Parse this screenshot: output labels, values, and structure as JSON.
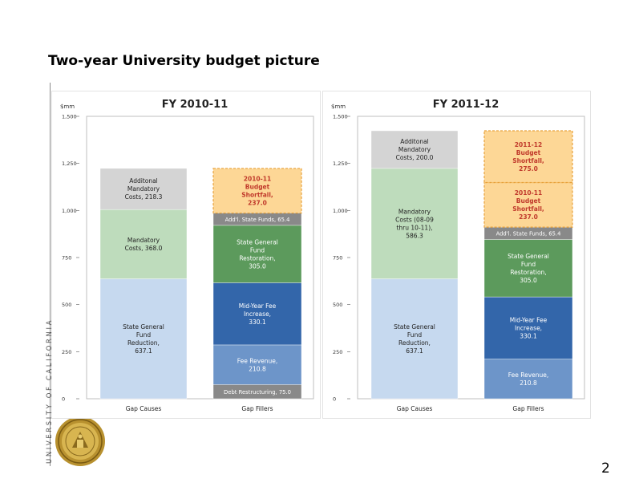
{
  "slide": {
    "title": "Two-year University budget picture",
    "page_number": "2",
    "sidebar_text": "UNIVERSITY OF CALIFORNIA"
  },
  "colors": {
    "causes_light_blue": "#c6d9ef",
    "mandatory_green": "#bedcbc",
    "additional_gray": "#d4d4d4",
    "shortfall_orange": "#fdd796",
    "shortfall_border": "#e8a23c",
    "restoration_green": "#5c9a5c",
    "midyear_blue": "#3366aa",
    "fee_blue": "#6d95c9",
    "dark_gray": "#898989"
  },
  "chart_data": [
    {
      "type": "bar",
      "stacked": true,
      "title": "FY 2010-11",
      "ylabel": "$mm",
      "ylim": [
        0,
        1500
      ],
      "yticks": [
        "0",
        "250",
        "500",
        "750",
        "1,000",
        "1,250",
        "1,500"
      ],
      "categories": [
        "Gap Causes",
        "Gap Fillers"
      ],
      "series": [
        {
          "name": "State General Fund Reduction",
          "category": "Gap Causes",
          "value": 637.1,
          "label": [
            "State General",
            "Fund",
            "Reduction,",
            "637.1"
          ]
        },
        {
          "name": "Mandatory Costs",
          "category": "Gap Causes",
          "value": 368.0,
          "label": [
            "Mandatory",
            "Costs, 368.0"
          ]
        },
        {
          "name": "Additional Mandatory Costs",
          "category": "Gap Causes",
          "value": 218.3,
          "label": [
            "Additonal",
            "Mandatory",
            "Costs, 218.3"
          ]
        },
        {
          "name": "Debt Restructuring",
          "category": "Gap Fillers",
          "value": 75.0,
          "label": [
            "Debt Restructuring, 75.0"
          ]
        },
        {
          "name": "Fee Revenue",
          "category": "Gap Fillers",
          "value": 210.8,
          "label": [
            "Fee Revenue,",
            "210.8"
          ]
        },
        {
          "name": "Mid-Year Fee Increase",
          "category": "Gap Fillers",
          "value": 330.1,
          "label": [
            "Mid-Year Fee",
            "Increase,",
            "330.1"
          ]
        },
        {
          "name": "State General Fund Restoration",
          "category": "Gap Fillers",
          "value": 305.0,
          "label": [
            "State General",
            "Fund",
            "Restoration,",
            "305.0"
          ]
        },
        {
          "name": "Add'l State Funds",
          "category": "Gap Fillers",
          "value": 65.4,
          "label": [
            "Add'l. State Funds, 65.4"
          ]
        },
        {
          "name": "2010-11 Budget Shortfall",
          "category": "Gap Fillers",
          "value": 237.0,
          "label": [
            "2010-11",
            "Budget",
            "Shortfall,",
            "237.0"
          ]
        }
      ]
    },
    {
      "type": "bar",
      "stacked": true,
      "title": "FY 2011-12",
      "ylabel": "$mm",
      "ylim": [
        0,
        1500
      ],
      "yticks": [
        "0",
        "250",
        "500",
        "750",
        "1,000",
        "1,250",
        "1,500"
      ],
      "categories": [
        "Gap Causes",
        "Gap Fillers"
      ],
      "series": [
        {
          "name": "State General Fund Reduction",
          "category": "Gap Causes",
          "value": 637.1,
          "label": [
            "State General",
            "Fund",
            "Reduction,",
            "637.1"
          ]
        },
        {
          "name": "Mandatory Costs (08-09 thru 10-11)",
          "category": "Gap Causes",
          "value": 586.3,
          "label": [
            "Mandatory",
            "Costs (08-09",
            "thru 10-11),",
            "586.3"
          ]
        },
        {
          "name": "Additional Mandatory Costs",
          "category": "Gap Causes",
          "value": 200.0,
          "label": [
            "Additonal",
            "Mandatory",
            "Costs, 200.0"
          ]
        },
        {
          "name": "Fee Revenue",
          "category": "Gap Fillers",
          "value": 210.8,
          "label": [
            "Fee Revenue,",
            "210.8"
          ]
        },
        {
          "name": "Mid-Year Fee Increase",
          "category": "Gap Fillers",
          "value": 330.1,
          "label": [
            "Mid-Year Fee",
            "Increase,",
            "330.1"
          ]
        },
        {
          "name": "State General Fund Restoration",
          "category": "Gap Fillers",
          "value": 305.0,
          "label": [
            "State General",
            "Fund",
            "Restoration,",
            "305.0"
          ]
        },
        {
          "name": "Add'l State Funds",
          "category": "Gap Fillers",
          "value": 65.4,
          "label": [
            "Add'l. State Funds, 65.4"
          ]
        },
        {
          "name": "2010-11 Budget Shortfall",
          "category": "Gap Fillers",
          "value": 237.0,
          "label": [
            "2010-11",
            "Budget",
            "Shortfall,",
            "237.0"
          ]
        },
        {
          "name": "2011-12 Budget Shortfall",
          "category": "Gap Fillers",
          "value": 275.0,
          "label": [
            "2011-12",
            "Budget",
            "Shortfall,",
            "275.0"
          ]
        }
      ]
    }
  ]
}
